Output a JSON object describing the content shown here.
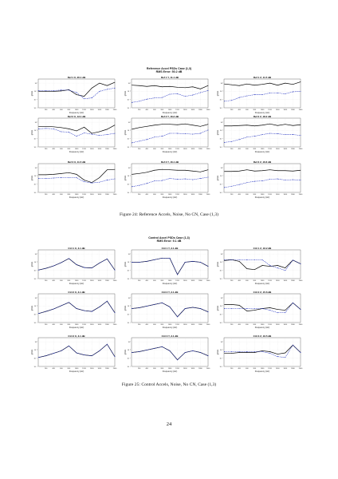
{
  "figure1": {
    "title_lines": [
      "Reference Accel PSDs Case (1,3)",
      "RMS Error: 50.2 dB"
    ],
    "caption": "Figure 24: Reference Accels, Noise, No CN, Case (1,3)",
    "panel_titles": [
      "Ref 1 X, 20.1 dB",
      "Ref 1 Y, 11.1 dB",
      "Ref 1 Z, 11.5 dB",
      "Ref 2 X, 13.1 dB",
      "Ref 2 Y, 16.2 dB",
      "Ref 2 Z, 18.2 dB",
      "Ref 3 X, 11.5 dB",
      "Ref 3 Y, 16.1 dB",
      "Ref 3 Z, 16.6 dB"
    ]
  },
  "figure2": {
    "title_lines": [
      "Control Accel PSDs Case (1,3)",
      "RMS Error: 9.1 dB"
    ],
    "caption": "Figure 25: Control Accels, Noise, No CN, Case (1,3)",
    "panel_titles": [
      "Ctrl 1 X, 3.1 dB",
      "Ctrl 1 Y, 3.1 dB",
      "Ctrl 1 Z, 16.2 dB",
      "Ctrl 2 X, 3.1 dB",
      "Ctrl 2 Y, 3.1 dB",
      "Ctrl 2 Z, 15.6 dB",
      "Ctrl 3 X, 3.1 dB",
      "Ctrl 3 Y, 3.1 dB",
      "Ctrl 3 Z, 16.5 dB"
    ]
  },
  "axis": {
    "xlabel": "Frequency (Hz)",
    "ylabel": "g²/Hz",
    "xticks": [
      "200",
      "400",
      "600",
      "800",
      "1000",
      "1200",
      "1400",
      "1600",
      "1800",
      "2000"
    ],
    "yticks": [
      "10⁰",
      "10⁻²",
      "10⁻⁴",
      "10⁻⁶"
    ]
  },
  "page_number": "24",
  "colors": {
    "measured": "#000000",
    "reference": "#1f2fbf"
  },
  "chart_data": [
    {
      "type": "line",
      "title": "Reference Accel PSDs Case (1,3)",
      "subtitle": "RMS Error: 50.2 dB",
      "xlabel": "Frequency (Hz)",
      "ylabel": "g²/Hz",
      "x": [
        10,
        200,
        400,
        600,
        800,
        1000,
        1200,
        1400,
        1600,
        1800,
        2000
      ],
      "xlim": [
        0,
        2000
      ],
      "ylim": [
        -6,
        1
      ],
      "yscale": "log",
      "grid": true,
      "panels": [
        {
          "title": "Ref 1 X, 20.1 dB",
          "series": [
            {
              "values": [
                -2.0,
                -2.0,
                -2.0,
                -1.9,
                -1.6,
                -2.8,
                -3.2,
                -1.2,
                0.0,
                -0.6,
                0.2
              ]
            },
            {
              "style": "dashed",
              "values": [
                -1.8,
                -1.8,
                -1.8,
                -1.7,
                -1.7,
                -2.3,
                -3.8,
                -3.6,
                -2.0,
                -1.5,
                -1.2
              ]
            }
          ]
        },
        {
          "title": "Ref 1 Y, 11.1 dB",
          "series": [
            {
              "values": [
                -0.5,
                -0.6,
                -0.8,
                -0.6,
                -0.9,
                -0.8,
                -1.0,
                -1.1,
                -0.9,
                -1.4,
                -0.6
              ]
            },
            {
              "style": "dashed",
              "values": [
                -4.7,
                -4.4,
                -3.9,
                -3.6,
                -3.5,
                -2.7,
                -2.6,
                -3.2,
                -2.9,
                -2.3,
                -1.8
              ]
            }
          ]
        },
        {
          "title": "Ref 1 Z, 11.5 dB",
          "series": [
            {
              "values": [
                -0.2,
                -0.4,
                -0.6,
                -0.2,
                -0.5,
                -0.3,
                0.0,
                -0.5,
                0.0,
                -0.3,
                0.3
              ]
            },
            {
              "style": "dashed",
              "values": [
                -4.4,
                -4.2,
                -3.5,
                -3.1,
                -2.8,
                -2.8,
                -2.4,
                -2.4,
                -2.6,
                -2.1,
                -2.0
              ]
            }
          ]
        },
        {
          "title": "Ref 2 X, 13.1 dB",
          "series": [
            {
              "values": [
                -1.0,
                -1.0,
                -1.1,
                -1.3,
                -1.6,
                -2.1,
                -1.2,
                -2.7,
                -2.3,
                -1.7,
                -0.7
              ]
            },
            {
              "style": "dashed",
              "values": [
                -1.6,
                -1.5,
                -1.6,
                -2.3,
                -2.4,
                -3.4,
                -2.6,
                -2.9,
                -3.2,
                -3.0,
                -2.7
              ]
            }
          ]
        },
        {
          "title": "Ref 2 Y, 16.2 dB",
          "series": [
            {
              "values": [
                -1.7,
                -1.3,
                -1.0,
                -0.7,
                -0.5,
                -0.5,
                -0.6,
                -0.4,
                -0.7,
                -1.0,
                -0.5
              ]
            },
            {
              "style": "dashed",
              "values": [
                -5.0,
                -4.6,
                -4.2,
                -3.6,
                -3.4,
                -2.7,
                -2.7,
                -2.8,
                -2.9,
                -2.7,
                -1.9
              ]
            }
          ]
        },
        {
          "title": "Ref 2 Z, 18.2 dB",
          "series": [
            {
              "values": [
                -0.9,
                -0.9,
                -0.8,
                -0.7,
                -0.9,
                -0.7,
                -0.4,
                -0.8,
                -0.5,
                -0.8,
                -0.6
              ]
            },
            {
              "style": "dashed",
              "values": [
                -4.9,
                -4.7,
                -4.2,
                -3.6,
                -3.4,
                -3.0,
                -2.7,
                -2.8,
                -3.0,
                -3.0,
                -3.2
              ]
            }
          ]
        },
        {
          "title": "Ref 3 X, 11.5 dB",
          "series": [
            {
              "values": [
                -1.7,
                -1.7,
                -1.6,
                -1.4,
                -1.2,
                -1.6,
                -3.0,
                -3.6,
                -2.4,
                -0.5,
                -0.4
              ]
            },
            {
              "style": "dashed",
              "values": [
                -2.6,
                -2.6,
                -2.5,
                -2.4,
                -2.4,
                -2.4,
                -3.4,
                -3.7,
                -3.5,
                -3.0,
                -2.7
              ]
            }
          ]
        },
        {
          "title": "Ref 3 Y, 16.1 dB",
          "series": [
            {
              "values": [
                -1.6,
                -1.4,
                -1.1,
                -0.6,
                -0.4,
                -0.5,
                -0.6,
                -0.6,
                -0.8,
                -1.0,
                -0.5
              ]
            },
            {
              "style": "dashed",
              "values": [
                -4.6,
                -4.3,
                -3.8,
                -3.2,
                -3.1,
                -2.6,
                -2.8,
                -2.7,
                -2.9,
                -2.6,
                -2.3
              ]
            }
          ]
        },
        {
          "title": "Ref 3 Z, 16.6 dB",
          "series": [
            {
              "values": [
                -0.9,
                -0.9,
                -0.8,
                -0.5,
                -0.8,
                -0.7,
                -0.5,
                -0.7,
                -0.7,
                -0.8,
                -0.6
              ]
            },
            {
              "style": "dashed",
              "values": [
                -4.8,
                -4.5,
                -4.1,
                -3.6,
                -3.3,
                -3.2,
                -2.8,
                -2.7,
                -3.0,
                -2.9,
                -3.0
              ]
            }
          ]
        }
      ]
    },
    {
      "type": "line",
      "title": "Control Accel PSDs Case (1,3)",
      "subtitle": "RMS Error: 9.1 dB",
      "xlabel": "Frequency (Hz)",
      "ylabel": "g²/Hz",
      "x": [
        10,
        200,
        400,
        600,
        800,
        1000,
        1200,
        1400,
        1600,
        1800,
        2000
      ],
      "xlim": [
        0,
        2000
      ],
      "ylim": [
        -6,
        1
      ],
      "yscale": "log",
      "grid": true,
      "panels": [
        {
          "title": "Ctrl 1 X, 3.1 dB",
          "series": [
            {
              "values": [
                -3.9,
                -3.5,
                -2.9,
                -2.1,
                -1.1,
                -2.6,
                -3.3,
                -3.4,
                -2.2,
                -1.2,
                -3.9
              ]
            },
            {
              "style": "dashed",
              "values": [
                -3.9,
                -3.5,
                -2.9,
                -2.1,
                -1.1,
                -2.6,
                -3.3,
                -3.4,
                -2.2,
                -1.2,
                -3.9
              ]
            }
          ]
        },
        {
          "title": "Ctrl 1 Y, 3.1 dB",
          "series": [
            {
              "values": [
                -2.0,
                -2.0,
                -1.8,
                -1.4,
                -1.0,
                -1.0,
                -5.0,
                -2.0,
                -1.8,
                -2.0,
                -3.0
              ]
            },
            {
              "style": "dashed",
              "values": [
                -2.0,
                -2.0,
                -1.8,
                -1.4,
                -1.0,
                -1.0,
                -5.0,
                -2.0,
                -1.8,
                -2.0,
                -3.0
              ]
            }
          ]
        },
        {
          "title": "Ctrl 1 Z, 16.2 dB",
          "series": [
            {
              "values": [
                -1.6,
                -1.4,
                -1.8,
                -3.6,
                -3.8,
                -2.8,
                -3.0,
                -2.8,
                -3.4,
                -1.5,
                -2.4
              ]
            },
            {
              "style": "dashed",
              "values": [
                -1.4,
                -1.4,
                -1.4,
                -1.4,
                -1.4,
                -1.4,
                -2.8,
                -3.4,
                -4.0,
                -1.5,
                -2.4
              ]
            }
          ]
        },
        {
          "title": "Ctrl 2 X, 3.1 dB",
          "series": [
            {
              "values": [
                -3.8,
                -3.3,
                -2.7,
                -1.9,
                -1.1,
                -2.6,
                -3.1,
                -3.3,
                -2.2,
                -0.8,
                -3.6
              ]
            },
            {
              "style": "dashed",
              "values": [
                -3.8,
                -3.3,
                -2.7,
                -1.9,
                -1.1,
                -2.6,
                -3.1,
                -3.3,
                -2.2,
                -0.8,
                -3.6
              ]
            }
          ]
        },
        {
          "title": "Ctrl 2 Y, 3.1 dB",
          "series": [
            {
              "values": [
                -2.6,
                -2.4,
                -2.0,
                -1.6,
                -1.2,
                -2.2,
                -4.6,
                -2.6,
                -2.3,
                -2.6,
                -3.4
              ]
            },
            {
              "style": "dashed",
              "values": [
                -2.6,
                -2.4,
                -2.0,
                -1.6,
                -1.2,
                -2.2,
                -4.6,
                -2.6,
                -2.3,
                -2.6,
                -3.4
              ]
            }
          ]
        },
        {
          "title": "Ctrl 2 Z, 15.6 dB",
          "series": [
            {
              "values": [
                -1.6,
                -1.6,
                -1.8,
                -3.2,
                -3.0,
                -2.6,
                -2.4,
                -2.8,
                -3.0,
                -1.2,
                -2.8
              ]
            },
            {
              "style": "dashed",
              "values": [
                -2.6,
                -2.6,
                -2.6,
                -2.6,
                -2.6,
                -2.6,
                -3.0,
                -3.6,
                -3.6,
                -1.2,
                -2.8
              ]
            }
          ]
        },
        {
          "title": "Ctrl 3 X, 3.1 dB",
          "series": [
            {
              "values": [
                -3.8,
                -3.4,
                -2.8,
                -2.2,
                -1.0,
                -2.7,
                -3.2,
                -3.4,
                -2.2,
                -0.6,
                -3.6
              ]
            },
            {
              "style": "dashed",
              "values": [
                -3.8,
                -3.4,
                -2.8,
                -2.2,
                -1.0,
                -2.7,
                -3.2,
                -3.4,
                -2.2,
                -0.6,
                -3.6
              ]
            }
          ]
        },
        {
          "title": "Ctrl 3 Y, 3.1 dB",
          "series": [
            {
              "values": [
                -2.6,
                -2.4,
                -2.0,
                -1.6,
                -1.2,
                -2.2,
                -4.4,
                -2.6,
                -2.2,
                -2.6,
                -3.4
              ]
            },
            {
              "style": "dashed",
              "values": [
                -2.6,
                -2.4,
                -2.0,
                -1.6,
                -1.2,
                -2.2,
                -4.4,
                -2.6,
                -2.2,
                -2.6,
                -3.4
              ]
            }
          ]
        },
        {
          "title": "Ctrl 3 Z, 16.5 dB",
          "series": [
            {
              "values": [
                -2.8,
                -2.8,
                -2.6,
                -2.6,
                -2.6,
                -2.2,
                -2.4,
                -3.0,
                -2.7,
                -0.8,
                -2.6
              ]
            },
            {
              "style": "dashed",
              "values": [
                -2.4,
                -2.4,
                -2.4,
                -2.4,
                -2.4,
                -2.4,
                -2.8,
                -3.6,
                -3.8,
                -0.8,
                -2.6
              ]
            }
          ]
        }
      ]
    }
  ]
}
